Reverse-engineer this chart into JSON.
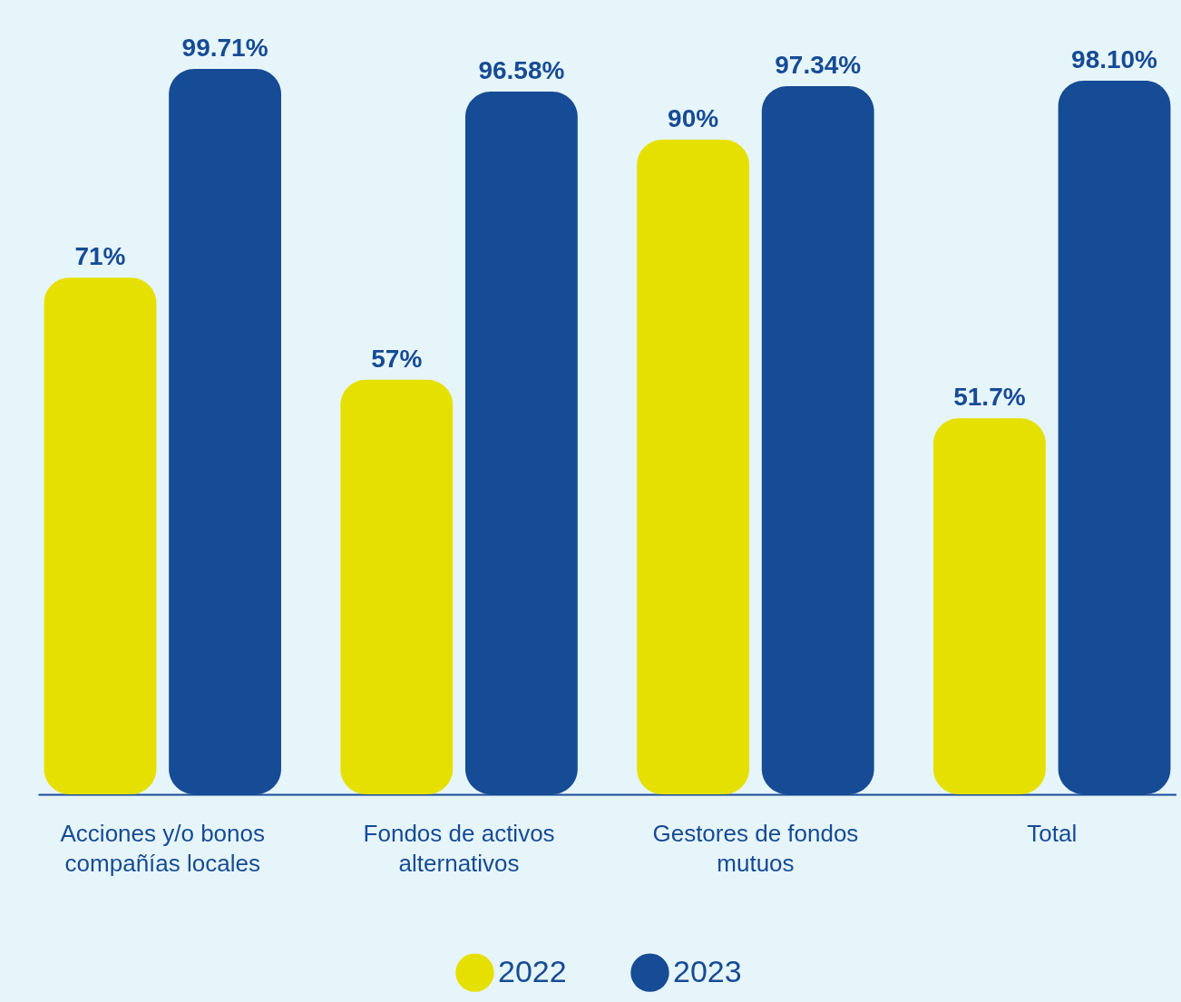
{
  "chart_data": {
    "type": "bar",
    "categories": [
      "Acciones y/o bonos compañías locales",
      "Fondos de activos alternativos",
      "Gestores de fondos mutuos",
      "Total"
    ],
    "series": [
      {
        "name": "2022",
        "color": "#e6e000",
        "values": [
          71,
          57,
          90,
          51.7
        ],
        "value_labels": [
          "71%",
          "57%",
          "90%",
          "51.7%"
        ]
      },
      {
        "name": "2023",
        "color": "#164b95",
        "values": [
          99.71,
          96.58,
          97.34,
          98.1
        ],
        "value_labels": [
          "99.71%",
          "96.58%",
          "97.34%",
          "98.10%"
        ]
      }
    ],
    "legend": "bottom",
    "grid": false
  }
}
